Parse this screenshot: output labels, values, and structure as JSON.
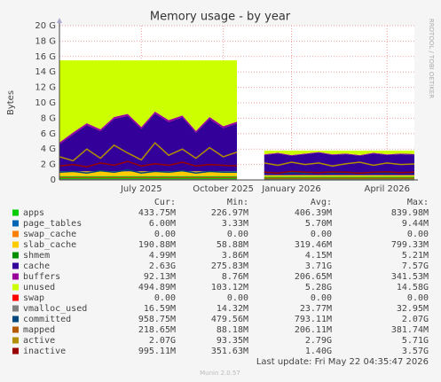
{
  "chart_data": {
    "type": "area",
    "title": "Memory usage - by year",
    "y_label": "Bytes",
    "side_note": "RRDTOOL / TOBI OETIKER",
    "footer": "Last update: Fri May 22 04:35:47 2026",
    "version": "Munin 2.0.57",
    "columns": [
      "Cur:",
      "Min:",
      "Avg:",
      "Max:"
    ],
    "ylim": [
      0,
      20
    ],
    "yticks": [
      0,
      {
        "value": 2,
        "label": "2 G"
      },
      {
        "value": 4,
        "label": "4 G"
      },
      {
        "value": 6,
        "label": "6 G"
      },
      {
        "value": 8,
        "label": "8 G"
      },
      {
        "value": 10,
        "label": "10 G"
      },
      {
        "value": 12,
        "label": "12 G"
      },
      {
        "value": 14,
        "label": "14 G"
      },
      {
        "value": 16,
        "label": "16 G"
      },
      {
        "value": 18,
        "label": "18 G"
      },
      {
        "value": 20,
        "label": "20 G"
      }
    ],
    "grid": true,
    "categories": [
      null,
      null,
      null,
      null,
      null,
      null,
      "July 2025",
      null,
      null,
      null,
      null,
      null,
      "October 2025",
      null,
      null,
      null,
      null,
      "January 2026",
      null,
      null,
      null,
      null,
      null,
      null,
      "April 2026",
      null,
      null
    ],
    "series": [
      {
        "name": "apps",
        "color": "#00cc00",
        "style": "area",
        "cur": "433.75M",
        "min": "226.97M",
        "avg": "406.39M",
        "max": "839.98M",
        "values": [
          0.5,
          0.5,
          0.5,
          0.5,
          0.5,
          0.5,
          0.5,
          0.5,
          0.5,
          0.5,
          0.5,
          0.5,
          0.5,
          0.5,
          null,
          0.43,
          0.43,
          0.43,
          0.43,
          0.43,
          0.43,
          0.43,
          0.43,
          0.43,
          0.43,
          0.43,
          0.43
        ]
      },
      {
        "name": "page_tables",
        "color": "#0066b3",
        "style": "area",
        "cur": "6.00M",
        "min": "3.33M",
        "avg": "5.70M",
        "max": "9.44M",
        "values": [
          0.006,
          0.006,
          0.006,
          0.006,
          0.006,
          0.006,
          0.006,
          0.006,
          0.006,
          0.006,
          0.006,
          0.006,
          0.006,
          0.006,
          null,
          0.006,
          0.006,
          0.006,
          0.006,
          0.006,
          0.006,
          0.006,
          0.006,
          0.006,
          0.006,
          0.006,
          0.006
        ]
      },
      {
        "name": "swap_cache",
        "color": "#ff8000",
        "style": "area",
        "cur": "0.00",
        "min": "0.00",
        "avg": "0.00",
        "max": "0.00",
        "values": [
          0,
          0,
          0,
          0,
          0,
          0,
          0,
          0,
          0,
          0,
          0,
          0,
          0,
          0,
          null,
          0,
          0,
          0,
          0,
          0,
          0,
          0,
          0,
          0,
          0,
          0,
          0
        ]
      },
      {
        "name": "slab_cache",
        "color": "#ffcc00",
        "style": "area",
        "cur": "190.88M",
        "min": "58.88M",
        "avg": "319.46M",
        "max": "799.33M",
        "values": [
          0.6,
          0.6,
          0.6,
          0.6,
          0.6,
          0.6,
          0.6,
          0.6,
          0.6,
          0.6,
          0.6,
          0.6,
          0.6,
          0.6,
          null,
          0.19,
          0.19,
          0.19,
          0.19,
          0.19,
          0.19,
          0.19,
          0.19,
          0.19,
          0.19,
          0.19,
          0.19
        ]
      },
      {
        "name": "shmem",
        "color": "#008f00",
        "style": "area",
        "cur": "4.99M",
        "min": "3.86M",
        "avg": "4.15M",
        "max": "5.21M",
        "values": [
          0.005,
          0.005,
          0.005,
          0.005,
          0.005,
          0.005,
          0.005,
          0.005,
          0.005,
          0.005,
          0.005,
          0.005,
          0.005,
          0.005,
          null,
          0.005,
          0.005,
          0.005,
          0.005,
          0.005,
          0.005,
          0.005,
          0.005,
          0.005,
          0.005,
          0.005,
          0.005
        ]
      },
      {
        "name": "cache",
        "color": "#330099",
        "style": "area",
        "cur": "2.63G",
        "min": "275.83M",
        "avg": "3.71G",
        "max": "7.57G",
        "values": [
          3.5,
          4.8,
          6.0,
          5.2,
          6.8,
          7.2,
          5.5,
          7.5,
          6.4,
          7.0,
          5.0,
          6.8,
          5.6,
          6.2,
          null,
          2.6,
          2.8,
          2.5,
          2.7,
          2.9,
          2.6,
          2.7,
          2.5,
          2.8,
          2.6,
          2.7,
          2.63
        ]
      },
      {
        "name": "buffers",
        "color": "#990099",
        "style": "area",
        "cur": "92.13M",
        "min": "8.76M",
        "avg": "206.65M",
        "max": "341.53M",
        "values": [
          0.25,
          0.25,
          0.25,
          0.25,
          0.25,
          0.25,
          0.25,
          0.25,
          0.25,
          0.25,
          0.25,
          0.25,
          0.25,
          0.25,
          null,
          0.09,
          0.09,
          0.09,
          0.09,
          0.09,
          0.09,
          0.09,
          0.09,
          0.09,
          0.09,
          0.09,
          0.09
        ]
      },
      {
        "name": "unused",
        "color": "#ccff00",
        "style": "area",
        "cur": "494.89M",
        "min": "103.12M",
        "avg": "5.28G",
        "max": "14.58G",
        "values": [
          10.64,
          9.34,
          8.14,
          8.94,
          7.34,
          6.94,
          8.64,
          6.64,
          7.74,
          7.14,
          9.14,
          7.34,
          8.54,
          7.94,
          null,
          0.48,
          0.28,
          0.58,
          0.38,
          0.18,
          0.48,
          0.38,
          0.58,
          0.28,
          0.48,
          0.38,
          0.45
        ]
      },
      {
        "name": "swap",
        "color": "#ff0000",
        "style": "area",
        "cur": "0.00",
        "min": "0.00",
        "avg": "0.00",
        "max": "0.00",
        "values": [
          0,
          0,
          0,
          0,
          0,
          0,
          0,
          0,
          0,
          0,
          0,
          0,
          0,
          0,
          null,
          0,
          0,
          0,
          0,
          0,
          0,
          0,
          0,
          0,
          0,
          0,
          0
        ]
      },
      {
        "name": "vmalloc_used",
        "color": "#808080",
        "style": "line",
        "cur": "16.59M",
        "min": "14.32M",
        "avg": "23.77M",
        "max": "32.95M",
        "values": [
          0.03,
          0.03,
          0.03,
          0.03,
          0.03,
          0.03,
          0.03,
          0.03,
          0.03,
          0.03,
          0.03,
          0.03,
          0.03,
          0.03,
          null,
          0.017,
          0.017,
          0.017,
          0.017,
          0.017,
          0.017,
          0.017,
          0.017,
          0.017,
          0.017,
          0.017,
          0.017
        ]
      },
      {
        "name": "committed",
        "color": "#00487d",
        "style": "line",
        "cur": "958.75M",
        "min": "479.56M",
        "avg": "793.11M",
        "max": "2.07G",
        "values": [
          1.0,
          1.1,
          0.9,
          1.2,
          1.0,
          1.3,
          0.9,
          1.1,
          1.0,
          1.2,
          0.9,
          1.1,
          1.0,
          1.0,
          null,
          0.96,
          0.9,
          0.95,
          0.9,
          0.98,
          0.92,
          0.95,
          0.9,
          0.97,
          0.93,
          0.95,
          0.96
        ]
      },
      {
        "name": "mapped",
        "color": "#b35a00",
        "style": "line",
        "cur": "218.65M",
        "min": "88.18M",
        "avg": "206.11M",
        "max": "381.74M",
        "values": [
          0.3,
          0.3,
          0.3,
          0.3,
          0.3,
          0.3,
          0.3,
          0.3,
          0.3,
          0.3,
          0.3,
          0.3,
          0.3,
          0.3,
          null,
          0.22,
          0.22,
          0.22,
          0.22,
          0.22,
          0.22,
          0.22,
          0.22,
          0.22,
          0.22,
          0.22,
          0.22
        ]
      },
      {
        "name": "active",
        "color": "#b38f00",
        "style": "line",
        "cur": "2.07G",
        "min": "93.35M",
        "avg": "2.79G",
        "max": "5.71G",
        "values": [
          3.0,
          2.5,
          4.0,
          2.8,
          4.5,
          3.5,
          2.6,
          4.8,
          3.2,
          4.0,
          2.8,
          4.2,
          3.0,
          3.6,
          null,
          2.2,
          1.9,
          2.3,
          2.0,
          2.2,
          1.8,
          2.1,
          2.3,
          1.9,
          2.2,
          2.0,
          2.07
        ]
      },
      {
        "name": "inactive",
        "color": "#990000",
        "style": "line",
        "cur": "995.11M",
        "min": "351.63M",
        "avg": "1.40G",
        "max": "3.57G",
        "values": [
          1.8,
          2.0,
          1.7,
          2.2,
          1.9,
          2.4,
          1.8,
          2.1,
          1.9,
          2.3,
          1.8,
          2.0,
          1.9,
          1.8,
          null,
          1.0,
          0.9,
          1.1,
          1.0,
          0.95,
          1.05,
          1.0,
          0.9,
          1.0,
          1.05,
          0.95,
          1.0
        ]
      }
    ]
  }
}
